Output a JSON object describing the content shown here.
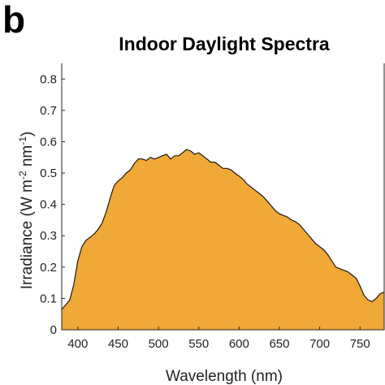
{
  "panel_label": "b",
  "chart_data": {
    "type": "area",
    "title": "Indoor Daylight Spectra",
    "xlabel": "Wavelength (nm)",
    "ylabel": {
      "base": "Irradiance (W m",
      "sup1": "-2",
      "mid": " nm",
      "sup2": "-1",
      "end": ")"
    },
    "xlim": [
      380,
      780
    ],
    "ylim": [
      0,
      0.85
    ],
    "xticks": [
      400,
      450,
      500,
      550,
      600,
      650,
      700,
      750
    ],
    "yticks": [
      0,
      0.1,
      0.2,
      0.3,
      0.4,
      0.5,
      0.6,
      0.7,
      0.8
    ],
    "grid": false,
    "fill_color": "#f0a836",
    "line_color": "#1a1a1a",
    "series": [
      {
        "x": [
          380,
          385,
          390,
          395,
          400,
          405,
          410,
          415,
          420,
          425,
          430,
          435,
          440,
          445,
          450,
          455,
          460,
          465,
          470,
          475,
          480,
          485,
          490,
          495,
          500,
          505,
          510,
          515,
          520,
          525,
          530,
          535,
          540,
          545,
          550,
          555,
          560,
          565,
          570,
          575,
          580,
          585,
          590,
          595,
          600,
          605,
          610,
          615,
          620,
          625,
          630,
          635,
          640,
          645,
          650,
          655,
          660,
          665,
          670,
          675,
          680,
          685,
          690,
          695,
          700,
          705,
          710,
          715,
          720,
          725,
          730,
          735,
          740,
          745,
          750,
          755,
          760,
          765,
          770,
          775,
          780
        ],
        "y": [
          0.065,
          0.08,
          0.095,
          0.145,
          0.22,
          0.265,
          0.285,
          0.295,
          0.305,
          0.32,
          0.34,
          0.375,
          0.42,
          0.46,
          0.475,
          0.485,
          0.5,
          0.51,
          0.53,
          0.545,
          0.545,
          0.54,
          0.55,
          0.545,
          0.55,
          0.555,
          0.56,
          0.545,
          0.555,
          0.555,
          0.565,
          0.575,
          0.57,
          0.56,
          0.565,
          0.555,
          0.545,
          0.535,
          0.535,
          0.525,
          0.515,
          0.515,
          0.51,
          0.5,
          0.49,
          0.48,
          0.465,
          0.455,
          0.445,
          0.435,
          0.425,
          0.41,
          0.395,
          0.38,
          0.37,
          0.365,
          0.36,
          0.35,
          0.345,
          0.335,
          0.32,
          0.305,
          0.29,
          0.275,
          0.265,
          0.255,
          0.24,
          0.22,
          0.2,
          0.195,
          0.19,
          0.185,
          0.175,
          0.165,
          0.14,
          0.11,
          0.095,
          0.09,
          0.1,
          0.115,
          0.12
        ]
      }
    ]
  }
}
